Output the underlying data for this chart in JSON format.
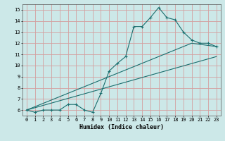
{
  "xlabel": "Humidex (Indice chaleur)",
  "bg_color": "#cce8e8",
  "grid_color": "#d4a0a0",
  "line_color": "#1a6e6e",
  "xlim": [
    -0.5,
    23.5
  ],
  "ylim": [
    5.5,
    15.5
  ],
  "xticks": [
    0,
    1,
    2,
    3,
    4,
    5,
    6,
    7,
    8,
    9,
    10,
    11,
    12,
    13,
    14,
    15,
    16,
    17,
    18,
    19,
    20,
    21,
    22,
    23
  ],
  "yticks": [
    6,
    7,
    8,
    9,
    10,
    11,
    12,
    13,
    14,
    15
  ],
  "line1_x": [
    0,
    1,
    2,
    3,
    4,
    5,
    6,
    7,
    8,
    9,
    10,
    11,
    12,
    13,
    14,
    15,
    16,
    17,
    18,
    19,
    20,
    21,
    22,
    23
  ],
  "line1_y": [
    6,
    5.8,
    6,
    6,
    6,
    6.5,
    6.5,
    6,
    5.8,
    7.5,
    9.5,
    10.2,
    10.8,
    13.5,
    13.5,
    14.3,
    15.2,
    14.3,
    14.1,
    13.0,
    12.3,
    12.0,
    12.0,
    11.7
  ],
  "line2_x": [
    0,
    23
  ],
  "line2_y": [
    6,
    10.8
  ],
  "line3_x": [
    0,
    20,
    23
  ],
  "line3_y": [
    6,
    12.0,
    11.7
  ],
  "tick_fontsize": 5.0,
  "xlabel_fontsize": 6.0
}
